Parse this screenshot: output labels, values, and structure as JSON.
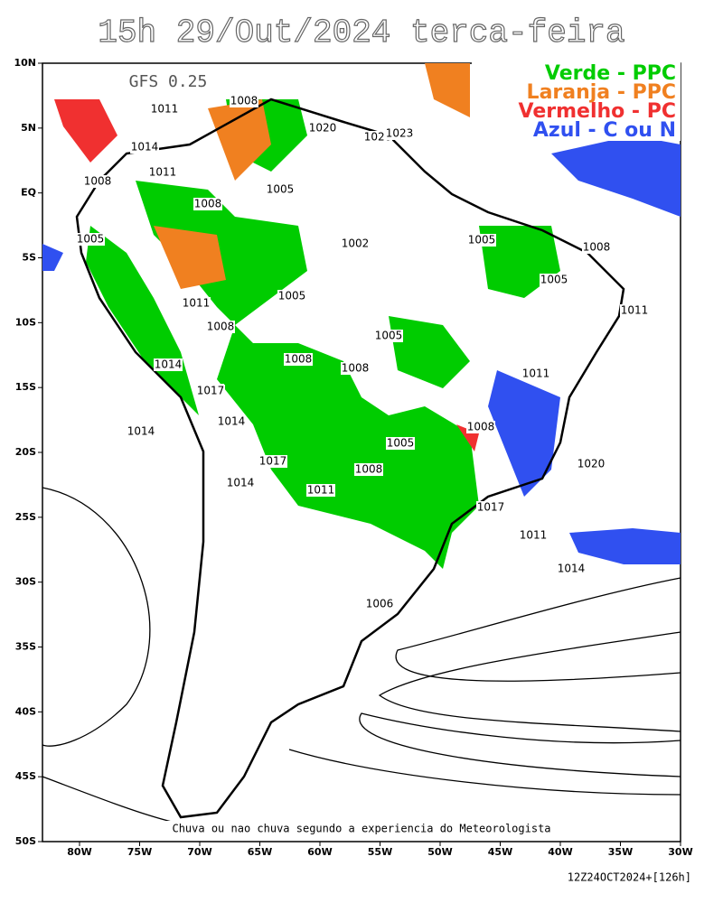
{
  "title": "15h 29/Out/2024 terca-feira",
  "model": "GFS 0.25",
  "legend": [
    {
      "label": "Verde - PPC",
      "color": "#00cc00"
    },
    {
      "label": "Laranja - PPC",
      "color": "#f08020"
    },
    {
      "label": "Vermelho - PC",
      "color": "#f03030"
    },
    {
      "label": "Azul - C ou N",
      "color": "#3050f0"
    }
  ],
  "lat_labels": [
    "10N",
    "5N",
    "EQ",
    "5S",
    "10S",
    "15S",
    "20S",
    "25S",
    "30S",
    "35S",
    "40S",
    "45S",
    "50S"
  ],
  "lon_labels": [
    "80W",
    "75W",
    "70W",
    "65W",
    "60W",
    "55W",
    "50W",
    "45W",
    "40W",
    "35W",
    "30W"
  ],
  "isobar_labels": [
    "1008",
    "1011",
    "1014",
    "1011",
    "1008",
    "1005",
    "1005",
    "1002",
    "1005",
    "1008",
    "1005",
    "1011",
    "1005",
    "1008",
    "1008",
    "1014",
    "1017",
    "1014",
    "1011",
    "1008",
    "1008",
    "1005",
    "1011",
    "1014",
    "1017",
    "1020",
    "1023",
    "1020",
    "1017",
    "1014",
    "1011",
    "1008",
    "1005",
    "1008",
    "1020",
    "1017",
    "1006",
    "1011",
    "1014"
  ],
  "note": "Chuva ou nao chuva segundo a experiencia do Meteorologista",
  "run_info": "12Z24OCT2024+[126h]"
}
